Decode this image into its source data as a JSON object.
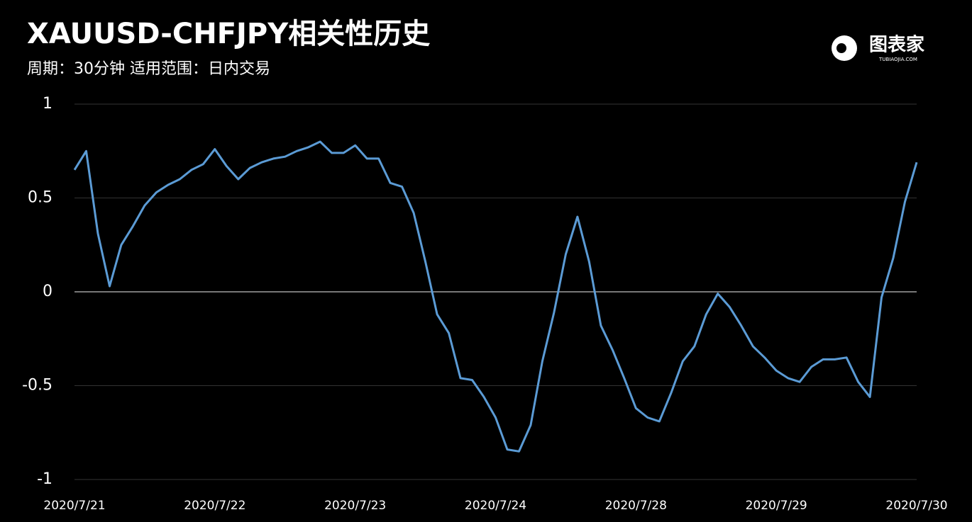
{
  "chart_data": {
    "type": "line",
    "title": "XAUUSD-CHFJPY相关性历史",
    "subtitle": "周期：30分钟  适用范围：日内交易",
    "logo": "图表家",
    "logo_sub": "TUBIAOJIA.COM",
    "categories": [
      "2020/7/21",
      null,
      null,
      null,
      null,
      null,
      null,
      null,
      null,
      null,
      null,
      null,
      "2020/7/22",
      null,
      null,
      null,
      null,
      null,
      null,
      null,
      null,
      null,
      null,
      null,
      "2020/7/23",
      null,
      null,
      null,
      null,
      null,
      null,
      null,
      null,
      null,
      null,
      null,
      "2020/7/24",
      null,
      null,
      null,
      null,
      null,
      null,
      null,
      null,
      null,
      null,
      null,
      "2020/7/28",
      null,
      null,
      null,
      null,
      null,
      null,
      null,
      null,
      null,
      null,
      null,
      "2020/7/29",
      null,
      null,
      null,
      null,
      null,
      null,
      null,
      null,
      null,
      null,
      null,
      "2020/7/30"
    ],
    "series": [
      {
        "name": "XAUUSD-CHFJPY",
        "color": "#5b9bd5",
        "values": [
          0.65,
          0.75,
          0.31,
          0.03,
          0.25,
          0.35,
          0.46,
          0.53,
          0.57,
          0.6,
          0.65,
          0.68,
          0.76,
          0.67,
          0.6,
          0.66,
          0.69,
          0.71,
          0.72,
          0.75,
          0.77,
          0.8,
          0.74,
          0.74,
          0.78,
          0.71,
          0.71,
          0.58,
          0.56,
          0.42,
          0.16,
          -0.12,
          -0.22,
          -0.46,
          -0.47,
          -0.56,
          -0.67,
          -0.84,
          -0.85,
          -0.71,
          -0.37,
          -0.11,
          0.2,
          0.4,
          0.16,
          -0.18,
          -0.31,
          -0.46,
          -0.62,
          -0.67,
          -0.69,
          -0.54,
          -0.37,
          -0.29,
          -0.12,
          -0.01,
          -0.08,
          -0.18,
          -0.29,
          -0.35,
          -0.42,
          -0.46,
          -0.48,
          -0.4,
          -0.36,
          -0.36,
          -0.35,
          -0.48,
          -0.56,
          -0.03,
          0.18,
          0.48,
          0.69
        ]
      }
    ],
    "ylim": [
      -1,
      1
    ],
    "yticks": [
      1,
      0.5,
      0,
      -0.5,
      -1
    ],
    "grid": true
  }
}
